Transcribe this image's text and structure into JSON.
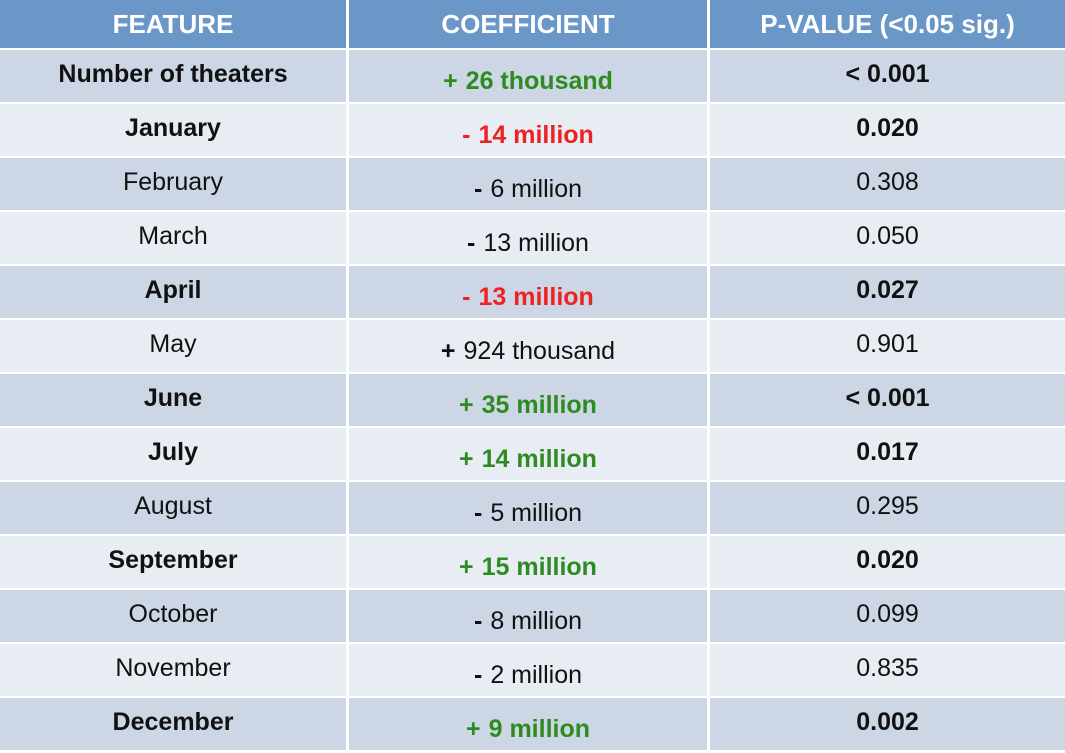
{
  "headers": {
    "feature": "FEATURE",
    "coefficient": "COEFFICIENT",
    "pvalue": "P-VALUE (<0.05 sig.)"
  },
  "colors": {
    "header_bg": "#6b97c8",
    "row_dark": "#ccd6e5",
    "row_light": "#e8edf4",
    "positive_significant": "#2e8b22",
    "negative_significant": "#ee2222",
    "neutral": "#111111"
  },
  "rows": [
    {
      "feature": "Number of theaters",
      "sign": "+",
      "coefficient": "26 thousand",
      "pvalue": "< 0.001",
      "significant": true,
      "direction": "positive"
    },
    {
      "feature": "January",
      "sign": "-",
      "coefficient": "14 million",
      "pvalue": "0.020",
      "significant": true,
      "direction": "negative"
    },
    {
      "feature": "February",
      "sign": "-",
      "coefficient": "6 million",
      "pvalue": "0.308",
      "significant": false,
      "direction": "negative"
    },
    {
      "feature": "March",
      "sign": "-",
      "coefficient": "13 million",
      "pvalue": "0.050",
      "significant": false,
      "direction": "negative"
    },
    {
      "feature": "April",
      "sign": "-",
      "coefficient": "13 million",
      "pvalue": "0.027",
      "significant": true,
      "direction": "negative"
    },
    {
      "feature": "May",
      "sign": "+",
      "coefficient": "924 thousand",
      "pvalue": "0.901",
      "significant": false,
      "direction": "positive"
    },
    {
      "feature": "June",
      "sign": "+",
      "coefficient": "35 million",
      "pvalue": "< 0.001",
      "significant": true,
      "direction": "positive"
    },
    {
      "feature": "July",
      "sign": "+",
      "coefficient": "14 million",
      "pvalue": "0.017",
      "significant": true,
      "direction": "positive"
    },
    {
      "feature": "August",
      "sign": "-",
      "coefficient": "5 million",
      "pvalue": "0.295",
      "significant": false,
      "direction": "negative"
    },
    {
      "feature": "September",
      "sign": "+",
      "coefficient": "15 million",
      "pvalue": "0.020",
      "significant": true,
      "direction": "positive"
    },
    {
      "feature": "October",
      "sign": "-",
      "coefficient": "8 million",
      "pvalue": "0.099",
      "significant": false,
      "direction": "negative"
    },
    {
      "feature": "November",
      "sign": "-",
      "coefficient": "2 million",
      "pvalue": "0.835",
      "significant": false,
      "direction": "negative"
    },
    {
      "feature": "December",
      "sign": "+",
      "coefficient": "9 million",
      "pvalue": "0.002",
      "significant": true,
      "direction": "positive"
    }
  ]
}
